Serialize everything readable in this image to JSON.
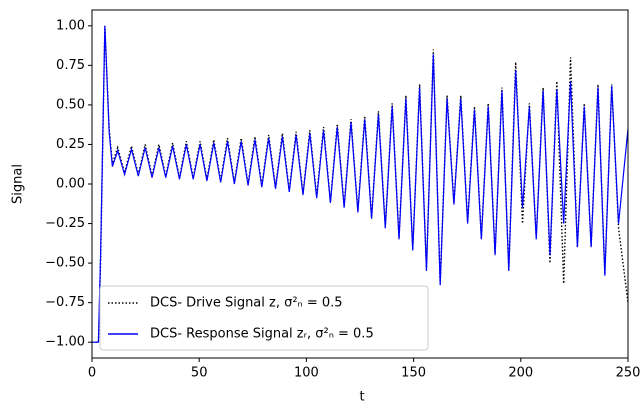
{
  "chart_data": {
    "type": "line",
    "xlabel": "t",
    "ylabel": "Signal",
    "xlim": [
      0,
      250
    ],
    "ylim": [
      -1.1,
      1.1
    ],
    "xticks": [
      0,
      50,
      100,
      150,
      200,
      250
    ],
    "yticks": [
      {
        "value": -1,
        "label": "−1.00"
      },
      {
        "value": -0.75,
        "label": "−0.75"
      },
      {
        "value": -0.5,
        "label": "−0.50"
      },
      {
        "value": -0.25,
        "label": "−0.25"
      },
      {
        "value": 0,
        "label": "0.00"
      },
      {
        "value": 0.25,
        "label": "0.25"
      },
      {
        "value": 0.5,
        "label": "0.50"
      },
      {
        "value": 0.75,
        "label": "0.75"
      },
      {
        "value": 1,
        "label": "1.00"
      }
    ],
    "legend": "lower left",
    "x": [
      0,
      3,
      4,
      6,
      8,
      9.5,
      12,
      15.2,
      18.4,
      21.6,
      24.8,
      28,
      31.2,
      34.4,
      37.6,
      40.8,
      44,
      47.2,
      50.4,
      53.6,
      56.8,
      60,
      63.2,
      66.4,
      69.6,
      72.8,
      76,
      79.2,
      82.4,
      85.6,
      88.8,
      92,
      95.2,
      98.4,
      101.6,
      104.8,
      108,
      111.2,
      114.4,
      117.6,
      120.8,
      124,
      127.2,
      130.4,
      133.6,
      136.8,
      140,
      143.2,
      146.4,
      149.6,
      152.8,
      156,
      159.2,
      162.4,
      165.6,
      168.8,
      172,
      175.2,
      178.4,
      181.6,
      184.8,
      188,
      191.2,
      194.4,
      197.6,
      200.8,
      204,
      207.2,
      210.4,
      213.6,
      216.8,
      220,
      223.2,
      226.4,
      229.6,
      232.8,
      236,
      239.2,
      242.4,
      245.6,
      250
    ],
    "series": [
      {
        "name": "DCS- Drive Signal z, σ²ₙ = 0.5",
        "color": "#000000",
        "style": "dotted",
        "values": [
          -1,
          -1,
          -0.5,
          1,
          0.35,
          0.13,
          0.23,
          0.07,
          0.24,
          0.06,
          0.25,
          0.05,
          0.25,
          0.05,
          0.26,
          0.04,
          0.27,
          0.04,
          0.27,
          0.03,
          0.28,
          0.02,
          0.29,
          0.01,
          0.29,
          0,
          0.3,
          -0.01,
          0.31,
          -0.02,
          0.32,
          -0.04,
          0.33,
          -0.06,
          0.34,
          -0.08,
          0.36,
          -0.11,
          0.38,
          -0.14,
          0.41,
          -0.17,
          0.43,
          -0.21,
          0.46,
          -0.27,
          0.51,
          -0.34,
          0.56,
          -0.41,
          0.63,
          -0.54,
          0.85,
          -0.63,
          0.56,
          -0.12,
          0.56,
          -0.24,
          0.49,
          -0.34,
          0.51,
          -0.44,
          0.61,
          -0.54,
          0.77,
          -0.25,
          0.51,
          -0.34,
          0.61,
          -0.5,
          0.65,
          -0.63,
          0.8,
          -0.4,
          0.51,
          -0.39,
          0.63,
          -0.57,
          0.63,
          -0.28,
          -0.75
        ]
      },
      {
        "name": "DCS- Response Signal zᵣ, σ²ₙ = 0.5",
        "color": "#0000ff",
        "style": "solid",
        "values": [
          -1,
          -1,
          -0.45,
          1,
          0.33,
          0.11,
          0.21,
          0.06,
          0.22,
          0.05,
          0.23,
          0.04,
          0.23,
          0.04,
          0.24,
          0.03,
          0.25,
          0.03,
          0.25,
          0.02,
          0.26,
          0.01,
          0.27,
          0,
          0.27,
          -0.01,
          0.28,
          -0.02,
          0.29,
          -0.03,
          0.3,
          -0.05,
          0.31,
          -0.07,
          0.32,
          -0.09,
          0.34,
          -0.12,
          0.36,
          -0.15,
          0.39,
          -0.18,
          0.41,
          -0.22,
          0.44,
          -0.28,
          0.49,
          -0.35,
          0.54,
          -0.42,
          0.61,
          -0.55,
          0.82,
          -0.64,
          0.54,
          -0.13,
          0.54,
          -0.25,
          0.47,
          -0.35,
          0.49,
          -0.45,
          0.59,
          -0.55,
          0.72,
          -0.15,
          0.49,
          -0.35,
          0.59,
          -0.45,
          0.6,
          -0.25,
          0.65,
          -0.4,
          0.49,
          -0.4,
          0.61,
          -0.58,
          0.62,
          -0.25,
          0.35
        ]
      }
    ]
  }
}
